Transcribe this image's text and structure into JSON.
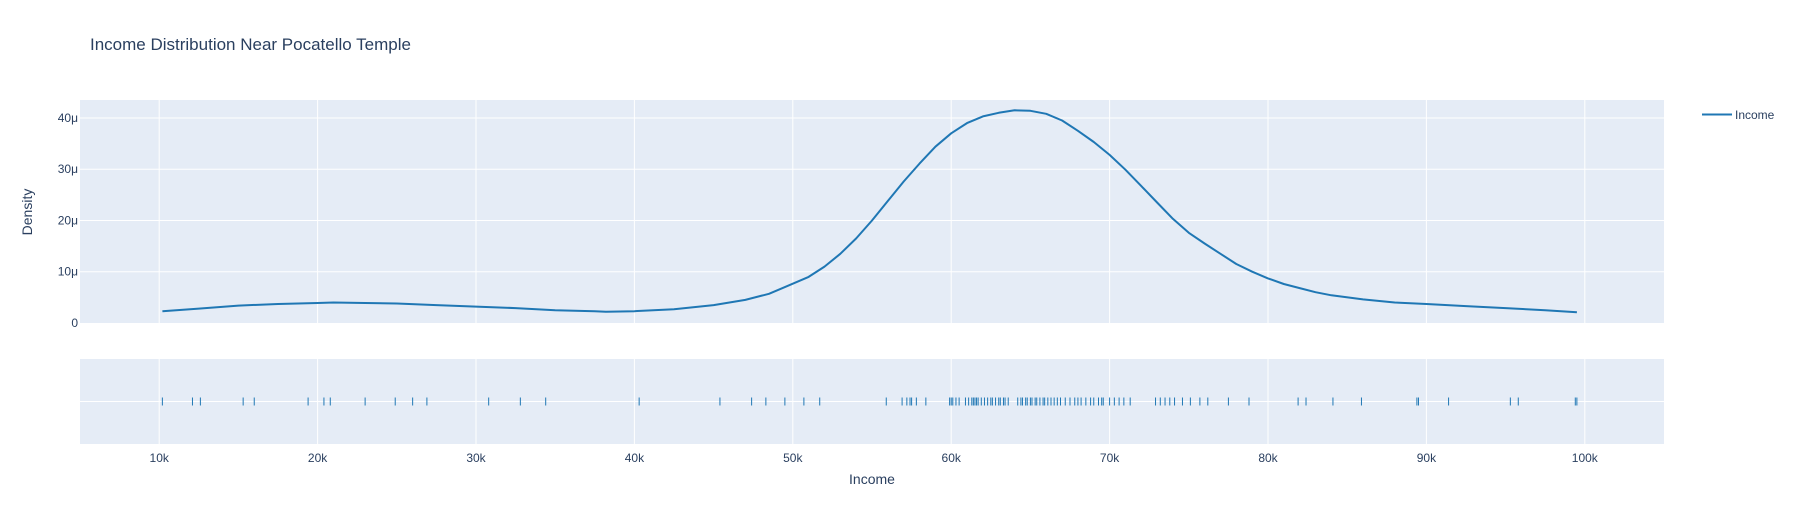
{
  "chart_data": {
    "type": "line",
    "title": "Income Distribution Near Pocatello Temple",
    "xlabel": "Income",
    "ylabel": "Density",
    "legend": {
      "entries": [
        "Income"
      ],
      "placement": "top-right"
    },
    "line_color": "#1f77b4",
    "plot_bg": "#e5ecf6",
    "grid": true,
    "x_range": [
      5000,
      105000
    ],
    "y_range": [
      0,
      4.35e-05
    ],
    "x_ticks": [
      {
        "v": 10000,
        "label": "10k"
      },
      {
        "v": 20000,
        "label": "20k"
      },
      {
        "v": 30000,
        "label": "30k"
      },
      {
        "v": 40000,
        "label": "40k"
      },
      {
        "v": 50000,
        "label": "50k"
      },
      {
        "v": 60000,
        "label": "60k"
      },
      {
        "v": 70000,
        "label": "70k"
      },
      {
        "v": 80000,
        "label": "80k"
      },
      {
        "v": 90000,
        "label": "90k"
      },
      {
        "v": 100000,
        "label": "100k"
      }
    ],
    "y_ticks": [
      {
        "v": 0,
        "label": "0"
      },
      {
        "v": 1e-05,
        "label": "10μ"
      },
      {
        "v": 2e-05,
        "label": "20μ"
      },
      {
        "v": 3e-05,
        "label": "30μ"
      },
      {
        "v": 4e-05,
        "label": "40μ"
      }
    ],
    "series": [
      {
        "name": "Income",
        "points": [
          [
            10200,
            2.3e-06
          ],
          [
            12500,
            2.8e-06
          ],
          [
            15000,
            3.4e-06
          ],
          [
            17500,
            3.7e-06
          ],
          [
            20000,
            3.9e-06
          ],
          [
            21000,
            4e-06
          ],
          [
            23000,
            3.9e-06
          ],
          [
            25000,
            3.8e-06
          ],
          [
            27500,
            3.5e-06
          ],
          [
            30000,
            3.2e-06
          ],
          [
            32500,
            2.9e-06
          ],
          [
            35000,
            2.5e-06
          ],
          [
            37500,
            2.3e-06
          ],
          [
            38200,
            2.2e-06
          ],
          [
            40000,
            2.3e-06
          ],
          [
            42500,
            2.7e-06
          ],
          [
            45000,
            3.5e-06
          ],
          [
            47000,
            4.5e-06
          ],
          [
            48500,
            5.7e-06
          ],
          [
            49500,
            7e-06
          ],
          [
            51000,
            9e-06
          ],
          [
            52000,
            1.1e-05
          ],
          [
            53000,
            1.35e-05
          ],
          [
            54000,
            1.65e-05
          ],
          [
            55000,
            2e-05
          ],
          [
            56000,
            2.38e-05
          ],
          [
            57000,
            2.76e-05
          ],
          [
            58000,
            3.11e-05
          ],
          [
            59000,
            3.44e-05
          ],
          [
            60000,
            3.7e-05
          ],
          [
            61000,
            3.9e-05
          ],
          [
            62000,
            4.03e-05
          ],
          [
            63000,
            4.1e-05
          ],
          [
            64000,
            4.15e-05
          ],
          [
            65000,
            4.14e-05
          ],
          [
            66000,
            4.08e-05
          ],
          [
            67000,
            3.95e-05
          ],
          [
            68000,
            3.75e-05
          ],
          [
            69000,
            3.53e-05
          ],
          [
            70000,
            3.28e-05
          ],
          [
            71000,
            2.99e-05
          ],
          [
            72000,
            2.67e-05
          ],
          [
            73000,
            2.35e-05
          ],
          [
            74000,
            2.03e-05
          ],
          [
            75000,
            1.76e-05
          ],
          [
            76000,
            1.55e-05
          ],
          [
            77000,
            1.35e-05
          ],
          [
            78000,
            1.15e-05
          ],
          [
            79000,
            1e-05
          ],
          [
            80000,
            8.7e-06
          ],
          [
            81000,
            7.6e-06
          ],
          [
            82000,
            6.8e-06
          ],
          [
            83000,
            6e-06
          ],
          [
            84000,
            5.4e-06
          ],
          [
            86000,
            4.6e-06
          ],
          [
            88000,
            4e-06
          ],
          [
            90000,
            3.7e-06
          ],
          [
            92500,
            3.3e-06
          ],
          [
            95000,
            2.9e-06
          ],
          [
            97500,
            2.5e-06
          ],
          [
            99500,
            2.1e-06
          ]
        ]
      }
    ],
    "rug_values": [
      10200,
      12100,
      12600,
      15300,
      16000,
      19400,
      20400,
      20800,
      23000,
      24900,
      26000,
      26900,
      30800,
      32800,
      34400,
      40300,
      45400,
      47400,
      48300,
      49500,
      50700,
      51700,
      55900,
      56900,
      57200,
      57400,
      57500,
      57800,
      58400,
      59900,
      60000,
      60100,
      60300,
      60500,
      60900,
      61100,
      61300,
      61400,
      61500,
      61600,
      61700,
      61900,
      62100,
      62300,
      62500,
      62600,
      62800,
      63000,
      63100,
      63300,
      63400,
      63600,
      64200,
      64400,
      64500,
      64700,
      64800,
      65000,
      65100,
      65300,
      65400,
      65600,
      65800,
      65900,
      66100,
      66300,
      66500,
      66700,
      66900,
      67200,
      67500,
      67800,
      68000,
      68200,
      68500,
      68800,
      69000,
      69300,
      69500,
      69600,
      70000,
      70300,
      70600,
      70900,
      71300,
      72900,
      73200,
      73500,
      73800,
      74100,
      74600,
      75100,
      75700,
      76200,
      77500,
      78800,
      81900,
      82400,
      84100,
      85900,
      89400,
      89500,
      91400,
      95300,
      95800,
      99400,
      99500
    ]
  }
}
